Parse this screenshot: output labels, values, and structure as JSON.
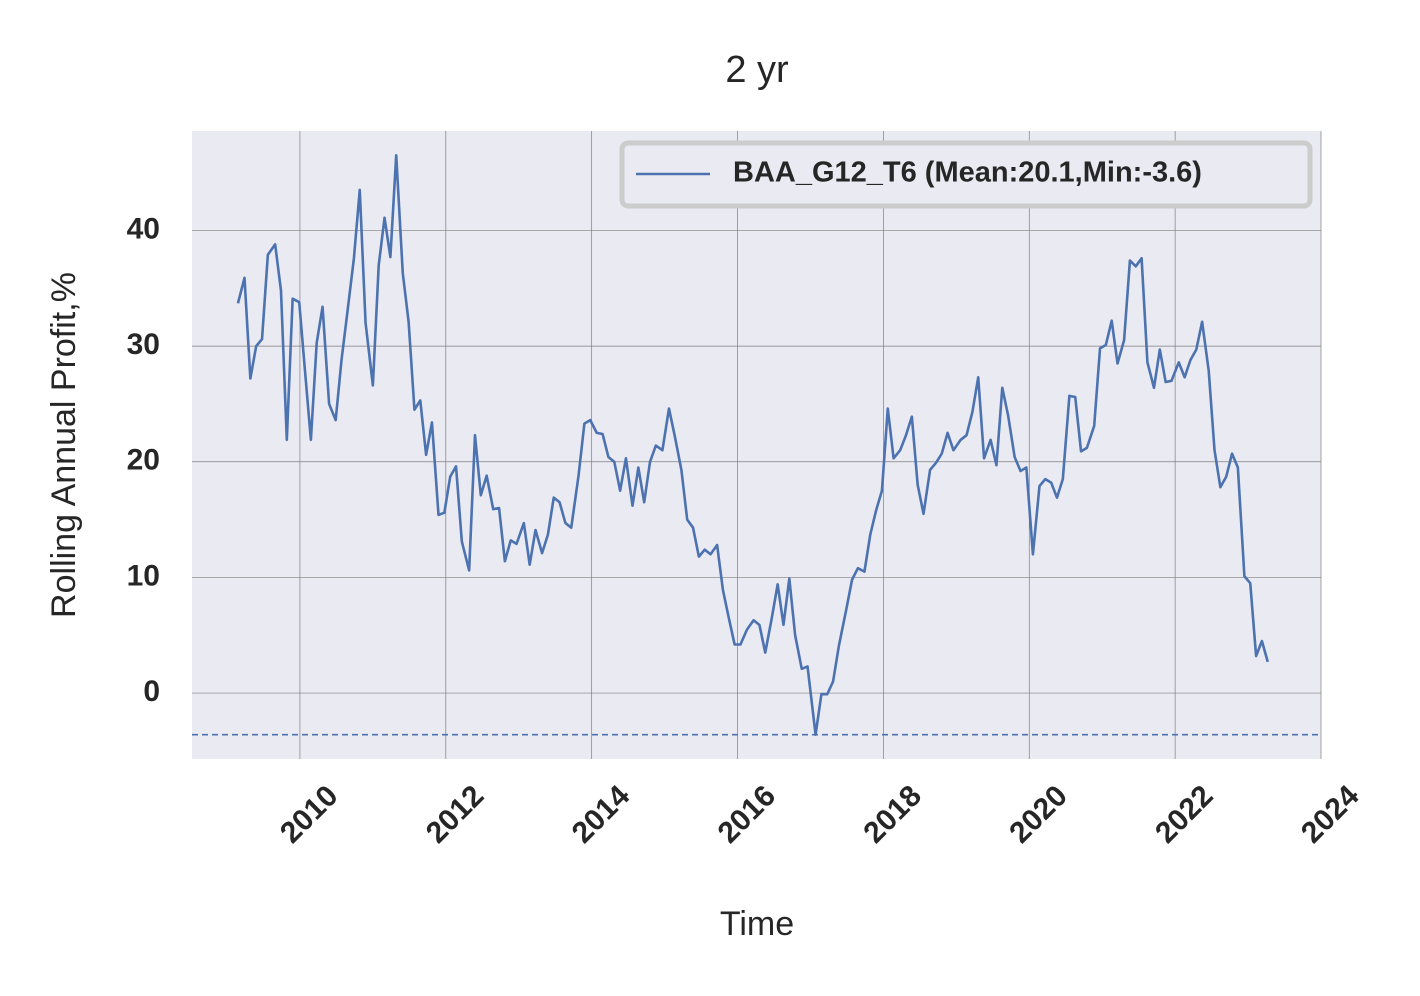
{
  "chart_data": {
    "type": "line",
    "title": "2 yr",
    "xlabel": "Time",
    "ylabel": "Rolling Annual Profit,%",
    "x": [
      2009.15,
      2009.24,
      2009.32,
      2009.4,
      2009.48,
      2009.56,
      2009.66,
      2009.74,
      2009.82,
      2009.9,
      2009.99,
      2010.07,
      2010.15,
      2010.23,
      2010.31,
      2010.4,
      2010.49,
      2010.57,
      2010.65,
      2010.74,
      2010.82,
      2010.9,
      2011.0,
      2011.08,
      2011.16,
      2011.24,
      2011.32,
      2011.41,
      2011.49,
      2011.57,
      2011.65,
      2011.73,
      2011.81,
      2011.9,
      2011.98,
      2012.06,
      2012.14,
      2012.22,
      2012.32,
      2012.4,
      2012.48,
      2012.56,
      2012.65,
      2012.73,
      2012.81,
      2012.89,
      2012.97,
      2013.07,
      2013.15,
      2013.23,
      2013.32,
      2013.4,
      2013.48,
      2013.56,
      2013.64,
      2013.72,
      2013.82,
      2013.9,
      2013.98,
      2014.07,
      2014.15,
      2014.23,
      2014.31,
      2014.39,
      2014.47,
      2014.56,
      2014.64,
      2014.72,
      2014.8,
      2014.88,
      2014.97,
      2015.06,
      2015.14,
      2015.23,
      2015.31,
      2015.39,
      2015.47,
      2015.55,
      2015.63,
      2015.72,
      2015.8,
      2015.88,
      2015.96,
      2016.04,
      2016.13,
      2016.22,
      2016.3,
      2016.38,
      2016.47,
      2016.55,
      2016.63,
      2016.71,
      2016.79,
      2016.88,
      2016.96,
      2017.07,
      2017.15,
      2017.23,
      2017.31,
      2017.39,
      2017.49,
      2017.57,
      2017.65,
      2017.74,
      2017.82,
      2017.9,
      2017.98,
      2018.06,
      2018.14,
      2018.23,
      2018.31,
      2018.39,
      2018.47,
      2018.55,
      2018.64,
      2018.72,
      2018.8,
      2018.88,
      2018.96,
      2019.06,
      2019.14,
      2019.22,
      2019.3,
      2019.38,
      2019.47,
      2019.55,
      2019.63,
      2019.71,
      2019.8,
      2019.88,
      2019.96,
      2020.05,
      2020.14,
      2020.22,
      2020.3,
      2020.38,
      2020.46,
      2020.55,
      2020.63,
      2020.71,
      2020.79,
      2020.89,
      2020.97,
      2021.05,
      2021.13,
      2021.21,
      2021.3,
      2021.38,
      2021.46,
      2021.54,
      2021.62,
      2021.71,
      2021.79,
      2021.87,
      2021.95,
      2022.05,
      2022.13,
      2022.21,
      2022.29,
      2022.37,
      2022.46,
      2022.54,
      2022.62,
      2022.7,
      2022.78,
      2022.86,
      2022.95,
      2023.03,
      2023.11,
      2023.19,
      2023.27
    ],
    "series": [
      {
        "name": "BAA_G12_T6 (Mean:20.1,Min:-3.6)",
        "color": "#4c72b0",
        "values": [
          33.7,
          35.9,
          27.2,
          30.0,
          30.6,
          37.9,
          38.8,
          34.8,
          21.9,
          34.1,
          33.8,
          27.8,
          21.9,
          30.3,
          33.4,
          25.0,
          23.6,
          28.8,
          32.9,
          37.6,
          43.5,
          32.0,
          26.6,
          37.0,
          41.1,
          37.7,
          46.5,
          36.3,
          32.1,
          24.5,
          25.3,
          20.6,
          23.4,
          15.4,
          15.6,
          18.7,
          19.6,
          13.1,
          10.6,
          22.3,
          17.1,
          18.8,
          15.9,
          16.0,
          11.4,
          13.2,
          12.9,
          14.7,
          11.1,
          14.1,
          12.1,
          13.7,
          16.9,
          16.5,
          14.7,
          14.3,
          18.8,
          23.3,
          23.6,
          22.5,
          22.4,
          20.4,
          20.0,
          17.5,
          20.3,
          16.2,
          19.5,
          16.5,
          20.0,
          21.4,
          21.0,
          24.6,
          22.2,
          19.3,
          15.0,
          14.3,
          11.8,
          12.4,
          12.0,
          12.8,
          8.9,
          6.5,
          4.2,
          4.2,
          5.5,
          6.3,
          5.9,
          3.5,
          6.5,
          9.4,
          5.9,
          9.9,
          5.0,
          2.1,
          2.3,
          -3.6,
          -0.1,
          -0.1,
          1.0,
          4.1,
          7.2,
          9.8,
          10.8,
          10.5,
          13.7,
          15.8,
          17.5,
          24.6,
          20.3,
          21.0,
          22.3,
          23.9,
          18.0,
          15.5,
          19.3,
          19.9,
          20.7,
          22.5,
          21.0,
          21.9,
          22.3,
          24.3,
          27.3,
          20.3,
          21.9,
          19.7,
          26.4,
          24.0,
          20.4,
          19.2,
          19.5,
          12.0,
          17.9,
          18.5,
          18.2,
          16.9,
          18.5,
          25.7,
          25.6,
          20.9,
          21.2,
          23.1,
          29.8,
          30.1,
          32.2,
          28.5,
          30.5,
          37.4,
          36.9,
          37.6,
          28.6,
          26.4,
          29.7,
          26.9,
          27.0,
          28.6,
          27.3,
          28.8,
          29.7,
          32.1,
          27.9,
          21.0,
          17.8,
          18.7,
          20.7,
          19.5,
          10.1,
          9.5,
          3.2,
          4.5,
          2.7
        ]
      }
    ],
    "min_line": -3.6,
    "xlim": [
      2008.52,
      2024
    ],
    "xticks": [
      2010,
      2012,
      2014,
      2016,
      2018,
      2020,
      2022,
      2024
    ],
    "ylim": [
      -5.7,
      48.6
    ],
    "yticks": [
      0,
      10,
      20,
      30,
      40
    ],
    "grid": true,
    "legend": "upper right"
  }
}
